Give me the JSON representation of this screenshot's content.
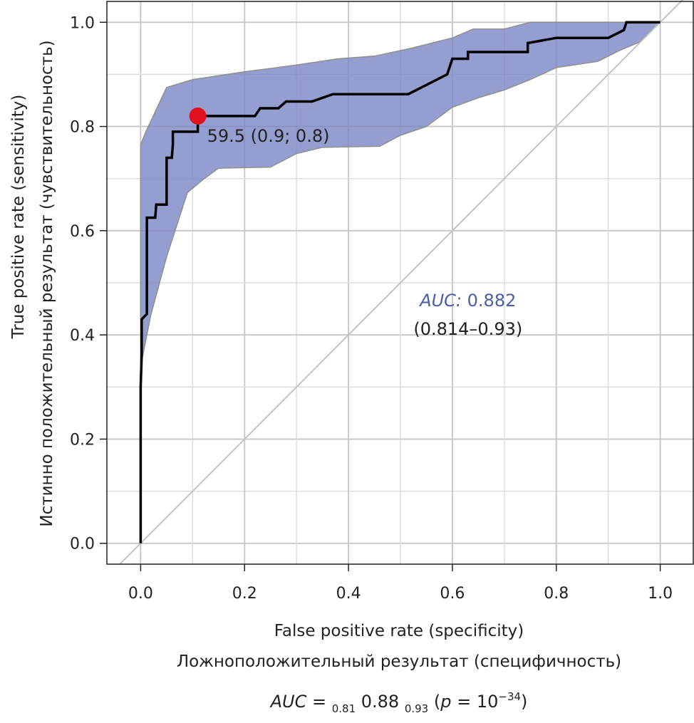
{
  "chart_data": {
    "type": "line",
    "x_axis": {
      "label_en": "False positive rate (specificity)",
      "label_ru": "Ложноположительный результат (специфичность)",
      "range": [
        -0.065,
        1.065
      ],
      "ticks": [
        0.0,
        0.2,
        0.4,
        0.6,
        0.8,
        1.0
      ],
      "tick_labels": [
        "0.0",
        "0.2",
        "0.4",
        "0.6",
        "0.8",
        "1.0"
      ]
    },
    "y_axis": {
      "label_en": "True positive rate (sensitivity)",
      "label_ru": "Истинно положительный результат (чувствительность)",
      "range": [
        -0.04,
        1.04
      ],
      "ticks": [
        0.0,
        0.2,
        0.4,
        0.6,
        0.8,
        1.0
      ],
      "tick_labels": [
        "0.0",
        "0.2",
        "0.4",
        "0.6",
        "0.8",
        "1.0"
      ]
    },
    "grid": true,
    "grid_minor": true,
    "reference_line": {
      "x": [
        -0.04,
        1.065
      ],
      "y": [
        -0.04,
        1.065
      ]
    },
    "roc_curve": {
      "color": "#000000",
      "points": [
        [
          0.0,
          0.0
        ],
        [
          0.0,
          0.3
        ],
        [
          0.002,
          0.36
        ],
        [
          0.002,
          0.43
        ],
        [
          0.012,
          0.44
        ],
        [
          0.012,
          0.625
        ],
        [
          0.028,
          0.625
        ],
        [
          0.03,
          0.65
        ],
        [
          0.05,
          0.65
        ],
        [
          0.05,
          0.74
        ],
        [
          0.06,
          0.74
        ],
        [
          0.062,
          0.765
        ],
        [
          0.062,
          0.79
        ],
        [
          0.11,
          0.79
        ],
        [
          0.11,
          0.82
        ],
        [
          0.22,
          0.82
        ],
        [
          0.23,
          0.835
        ],
        [
          0.265,
          0.835
        ],
        [
          0.28,
          0.848
        ],
        [
          0.33,
          0.848
        ],
        [
          0.37,
          0.862
        ],
        [
          0.515,
          0.862
        ],
        [
          0.59,
          0.9
        ],
        [
          0.6,
          0.93
        ],
        [
          0.63,
          0.93
        ],
        [
          0.63,
          0.943
        ],
        [
          0.745,
          0.943
        ],
        [
          0.745,
          0.96
        ],
        [
          0.8,
          0.97
        ],
        [
          0.9,
          0.97
        ],
        [
          0.93,
          0.985
        ],
        [
          0.935,
          1.0
        ],
        [
          1.0,
          1.0
        ]
      ]
    },
    "confidence_band": {
      "color": "#7b86c4",
      "upper": [
        [
          0.0,
          0.765
        ],
        [
          0.01,
          0.79
        ],
        [
          0.05,
          0.875
        ],
        [
          0.1,
          0.89
        ],
        [
          0.2,
          0.905
        ],
        [
          0.3,
          0.918
        ],
        [
          0.38,
          0.93
        ],
        [
          0.45,
          0.935
        ],
        [
          0.52,
          0.95
        ],
        [
          0.6,
          0.97
        ],
        [
          0.64,
          0.987
        ],
        [
          0.7,
          0.987
        ],
        [
          0.75,
          1.0
        ],
        [
          1.0,
          1.0
        ]
      ],
      "lower": [
        [
          0.0,
          0.34
        ],
        [
          0.02,
          0.44
        ],
        [
          0.05,
          0.55
        ],
        [
          0.09,
          0.673
        ],
        [
          0.12,
          0.698
        ],
        [
          0.15,
          0.72
        ],
        [
          0.25,
          0.722
        ],
        [
          0.3,
          0.748
        ],
        [
          0.35,
          0.76
        ],
        [
          0.46,
          0.762
        ],
        [
          0.5,
          0.783
        ],
        [
          0.55,
          0.8
        ],
        [
          0.6,
          0.837
        ],
        [
          0.65,
          0.855
        ],
        [
          0.7,
          0.87
        ],
        [
          0.75,
          0.89
        ],
        [
          0.8,
          0.913
        ],
        [
          0.88,
          0.925
        ],
        [
          0.92,
          0.945
        ],
        [
          0.96,
          0.962
        ],
        [
          1.0,
          1.0
        ]
      ]
    },
    "cutoff_point": {
      "x": 0.11,
      "y": 0.82,
      "color": "#e0101e",
      "label": "59.5 (0.9; 0.8)"
    },
    "auc_annotation": {
      "prefix": "AUC:",
      "value": "0.882",
      "ci": "(0.814–0.93)",
      "color": "#4a5fa8"
    },
    "footer": {
      "prefix": "AUC",
      "equals": " = ",
      "lower": "0.81",
      "estimate": " 0.88 ",
      "upper": "0.93",
      "p_open": " (",
      "p_var": "p",
      "p_equals": " = 10",
      "p_exponent": "−34",
      "p_close": ")"
    }
  }
}
